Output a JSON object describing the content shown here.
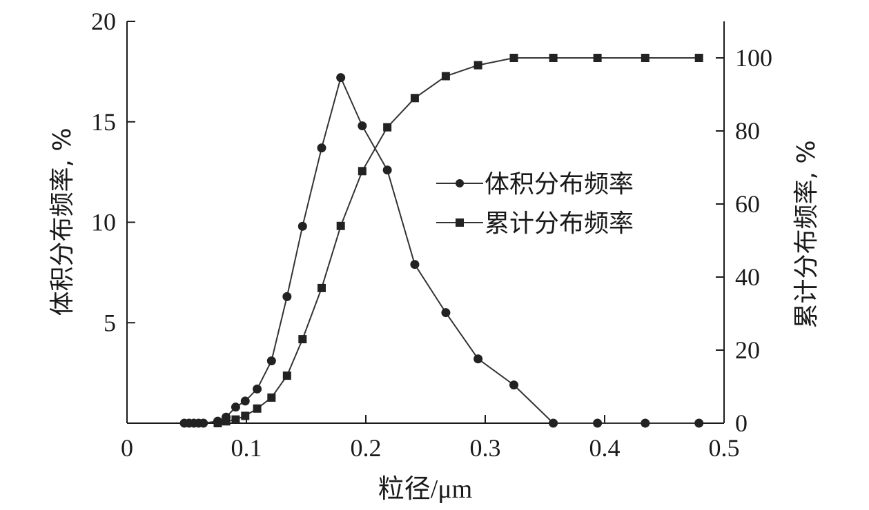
{
  "chart_data": {
    "type": "line",
    "title": "",
    "xlabel": "粒径/μm",
    "ylabel_left": "体积分布频率, %",
    "ylabel_right": "累计分布频率, %",
    "xlim": [
      0,
      0.5
    ],
    "ylim_left": [
      0,
      20
    ],
    "ylim_right": [
      0,
      100
    ],
    "x_ticks": [
      "0",
      "0.1",
      "0.2",
      "0.3",
      "0.4",
      "0.5"
    ],
    "y_left_ticks": [
      "5",
      "10",
      "15",
      "20"
    ],
    "y_right_ticks": [
      "0",
      "20",
      "40",
      "60",
      "80",
      "100"
    ],
    "grid": false,
    "legend_position": "center-right",
    "series": [
      {
        "name": "体积分布频率",
        "marker": "circle",
        "axis": "left",
        "x": [
          0.048,
          0.052,
          0.056,
          0.06,
          0.064,
          0.076,
          0.083,
          0.091,
          0.099,
          0.109,
          0.121,
          0.134,
          0.147,
          0.163,
          0.179,
          0.197,
          0.218,
          0.241,
          0.267,
          0.294,
          0.324,
          0.357,
          0.394,
          0.434,
          0.479
        ],
        "values": [
          0,
          0,
          0,
          0,
          0,
          0.1,
          0.3,
          0.8,
          1.1,
          1.7,
          3.1,
          6.3,
          9.8,
          13.7,
          17.2,
          14.8,
          12.6,
          7.9,
          5.5,
          3.2,
          1.9,
          0,
          0,
          0,
          0
        ]
      },
      {
        "name": "累计分布频率",
        "marker": "square",
        "axis": "right",
        "x": [
          0.076,
          0.083,
          0.091,
          0.099,
          0.109,
          0.121,
          0.134,
          0.147,
          0.163,
          0.179,
          0.197,
          0.218,
          0.241,
          0.267,
          0.294,
          0.324,
          0.357,
          0.394,
          0.434,
          0.479
        ],
        "values": [
          0,
          0.5,
          1,
          2,
          4,
          7,
          13,
          23,
          37,
          54,
          69,
          81,
          89,
          95,
          98,
          100,
          100,
          100,
          100,
          100
        ]
      }
    ]
  }
}
